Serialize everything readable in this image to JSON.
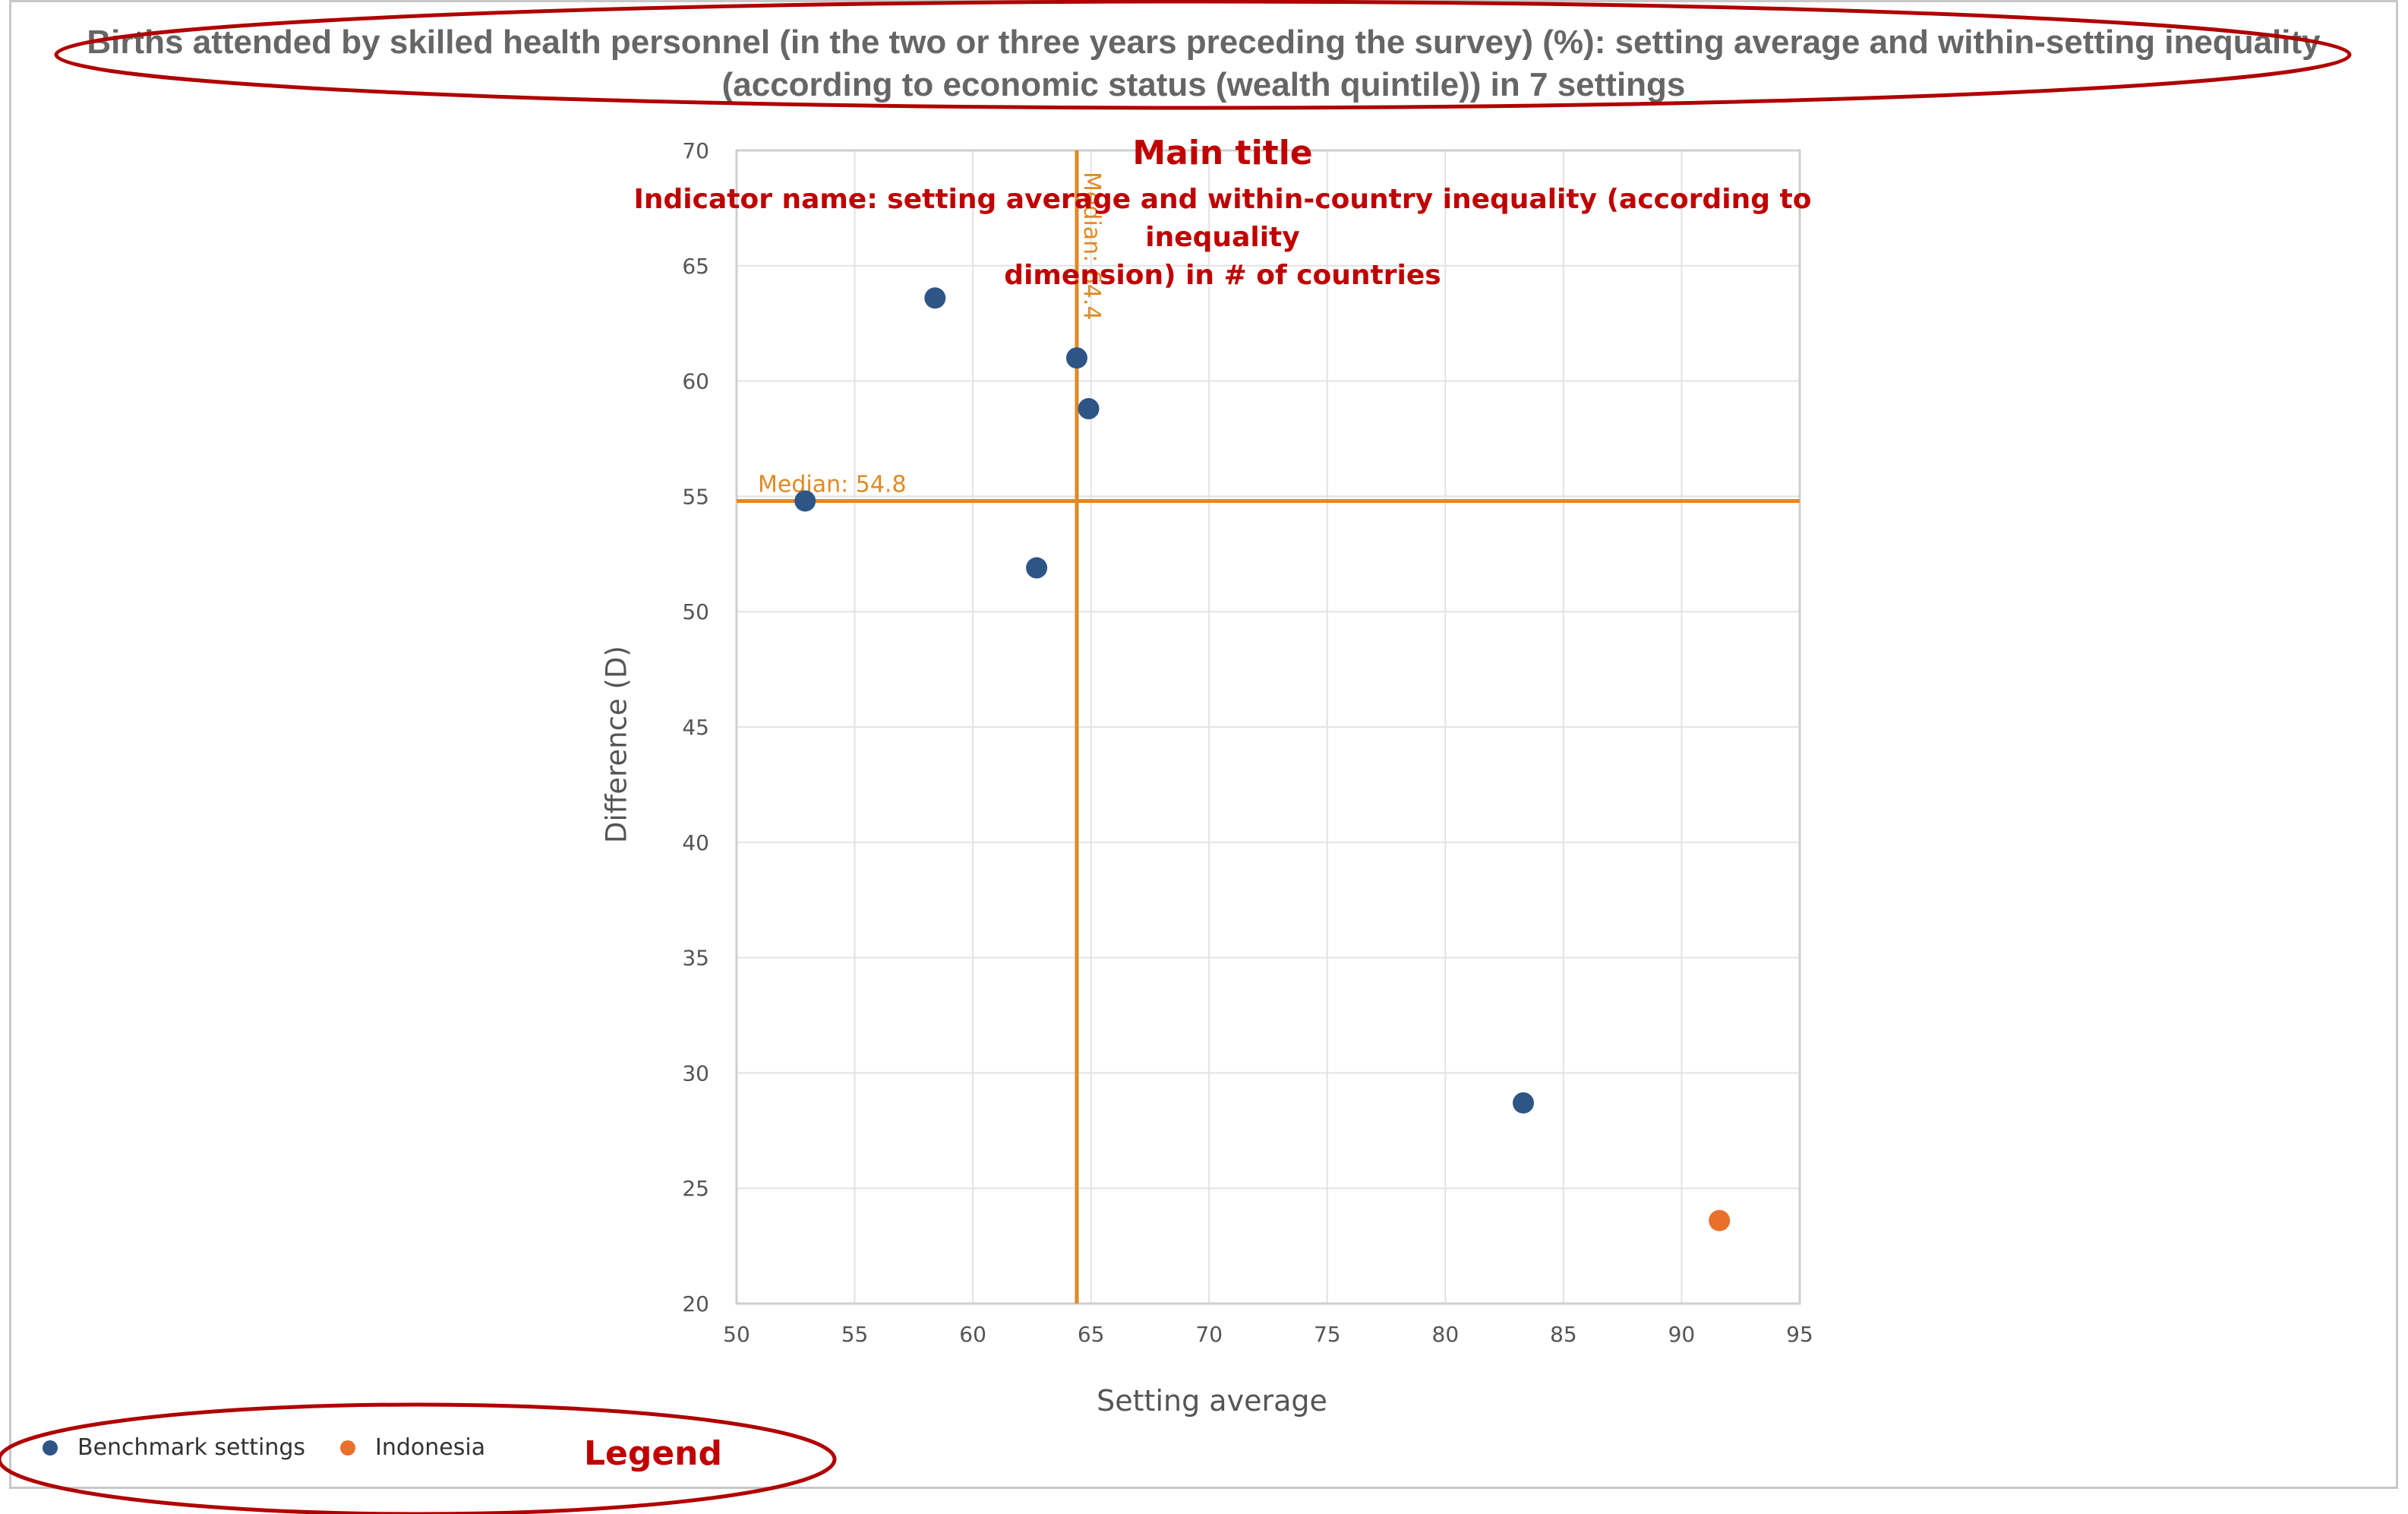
{
  "chart_data": {
    "type": "scatter",
    "title_lines": [
      "Births attended by skilled health personnel (in the two or three years preceding the survey) (%): setting average and within-setting inequality",
      "(according to economic status (wealth quintile)) in 7 settings"
    ],
    "xlabel": "Setting average",
    "ylabel": "Difference (D)",
    "xlim": [
      50,
      95
    ],
    "ylim": [
      20,
      70
    ],
    "x_ticks": [
      50,
      55,
      60,
      65,
      70,
      75,
      80,
      85,
      90,
      95
    ],
    "y_ticks": [
      20,
      25,
      30,
      35,
      40,
      45,
      50,
      55,
      60,
      65,
      70
    ],
    "grid": true,
    "series": [
      {
        "name": "Benchmark settings",
        "color": "#2e5585",
        "points": [
          {
            "x": 52.9,
            "y": 54.8
          },
          {
            "x": 58.4,
            "y": 63.6
          },
          {
            "x": 62.7,
            "y": 51.9
          },
          {
            "x": 64.4,
            "y": 61.0
          },
          {
            "x": 64.9,
            "y": 58.8
          },
          {
            "x": 83.3,
            "y": 28.7
          }
        ]
      },
      {
        "name": "Indonesia",
        "color": "#e8702a",
        "points": [
          {
            "x": 91.6,
            "y": 23.6
          }
        ]
      }
    ],
    "reference_lines": [
      {
        "axis": "x",
        "value": 64.4,
        "label": "Median: 64.4",
        "color": "#e08a25"
      },
      {
        "axis": "y",
        "value": 54.8,
        "label": "Median: 54.8",
        "color": "#e08a25"
      }
    ],
    "legend_position": "bottom-left"
  },
  "annotations": {
    "main_title": "Main title",
    "indicator_lines": [
      "Indicator name: setting average and within-country inequality (according to inequality",
      "dimension) in # of countries"
    ],
    "legend": "Legend",
    "color": "#c00000"
  }
}
